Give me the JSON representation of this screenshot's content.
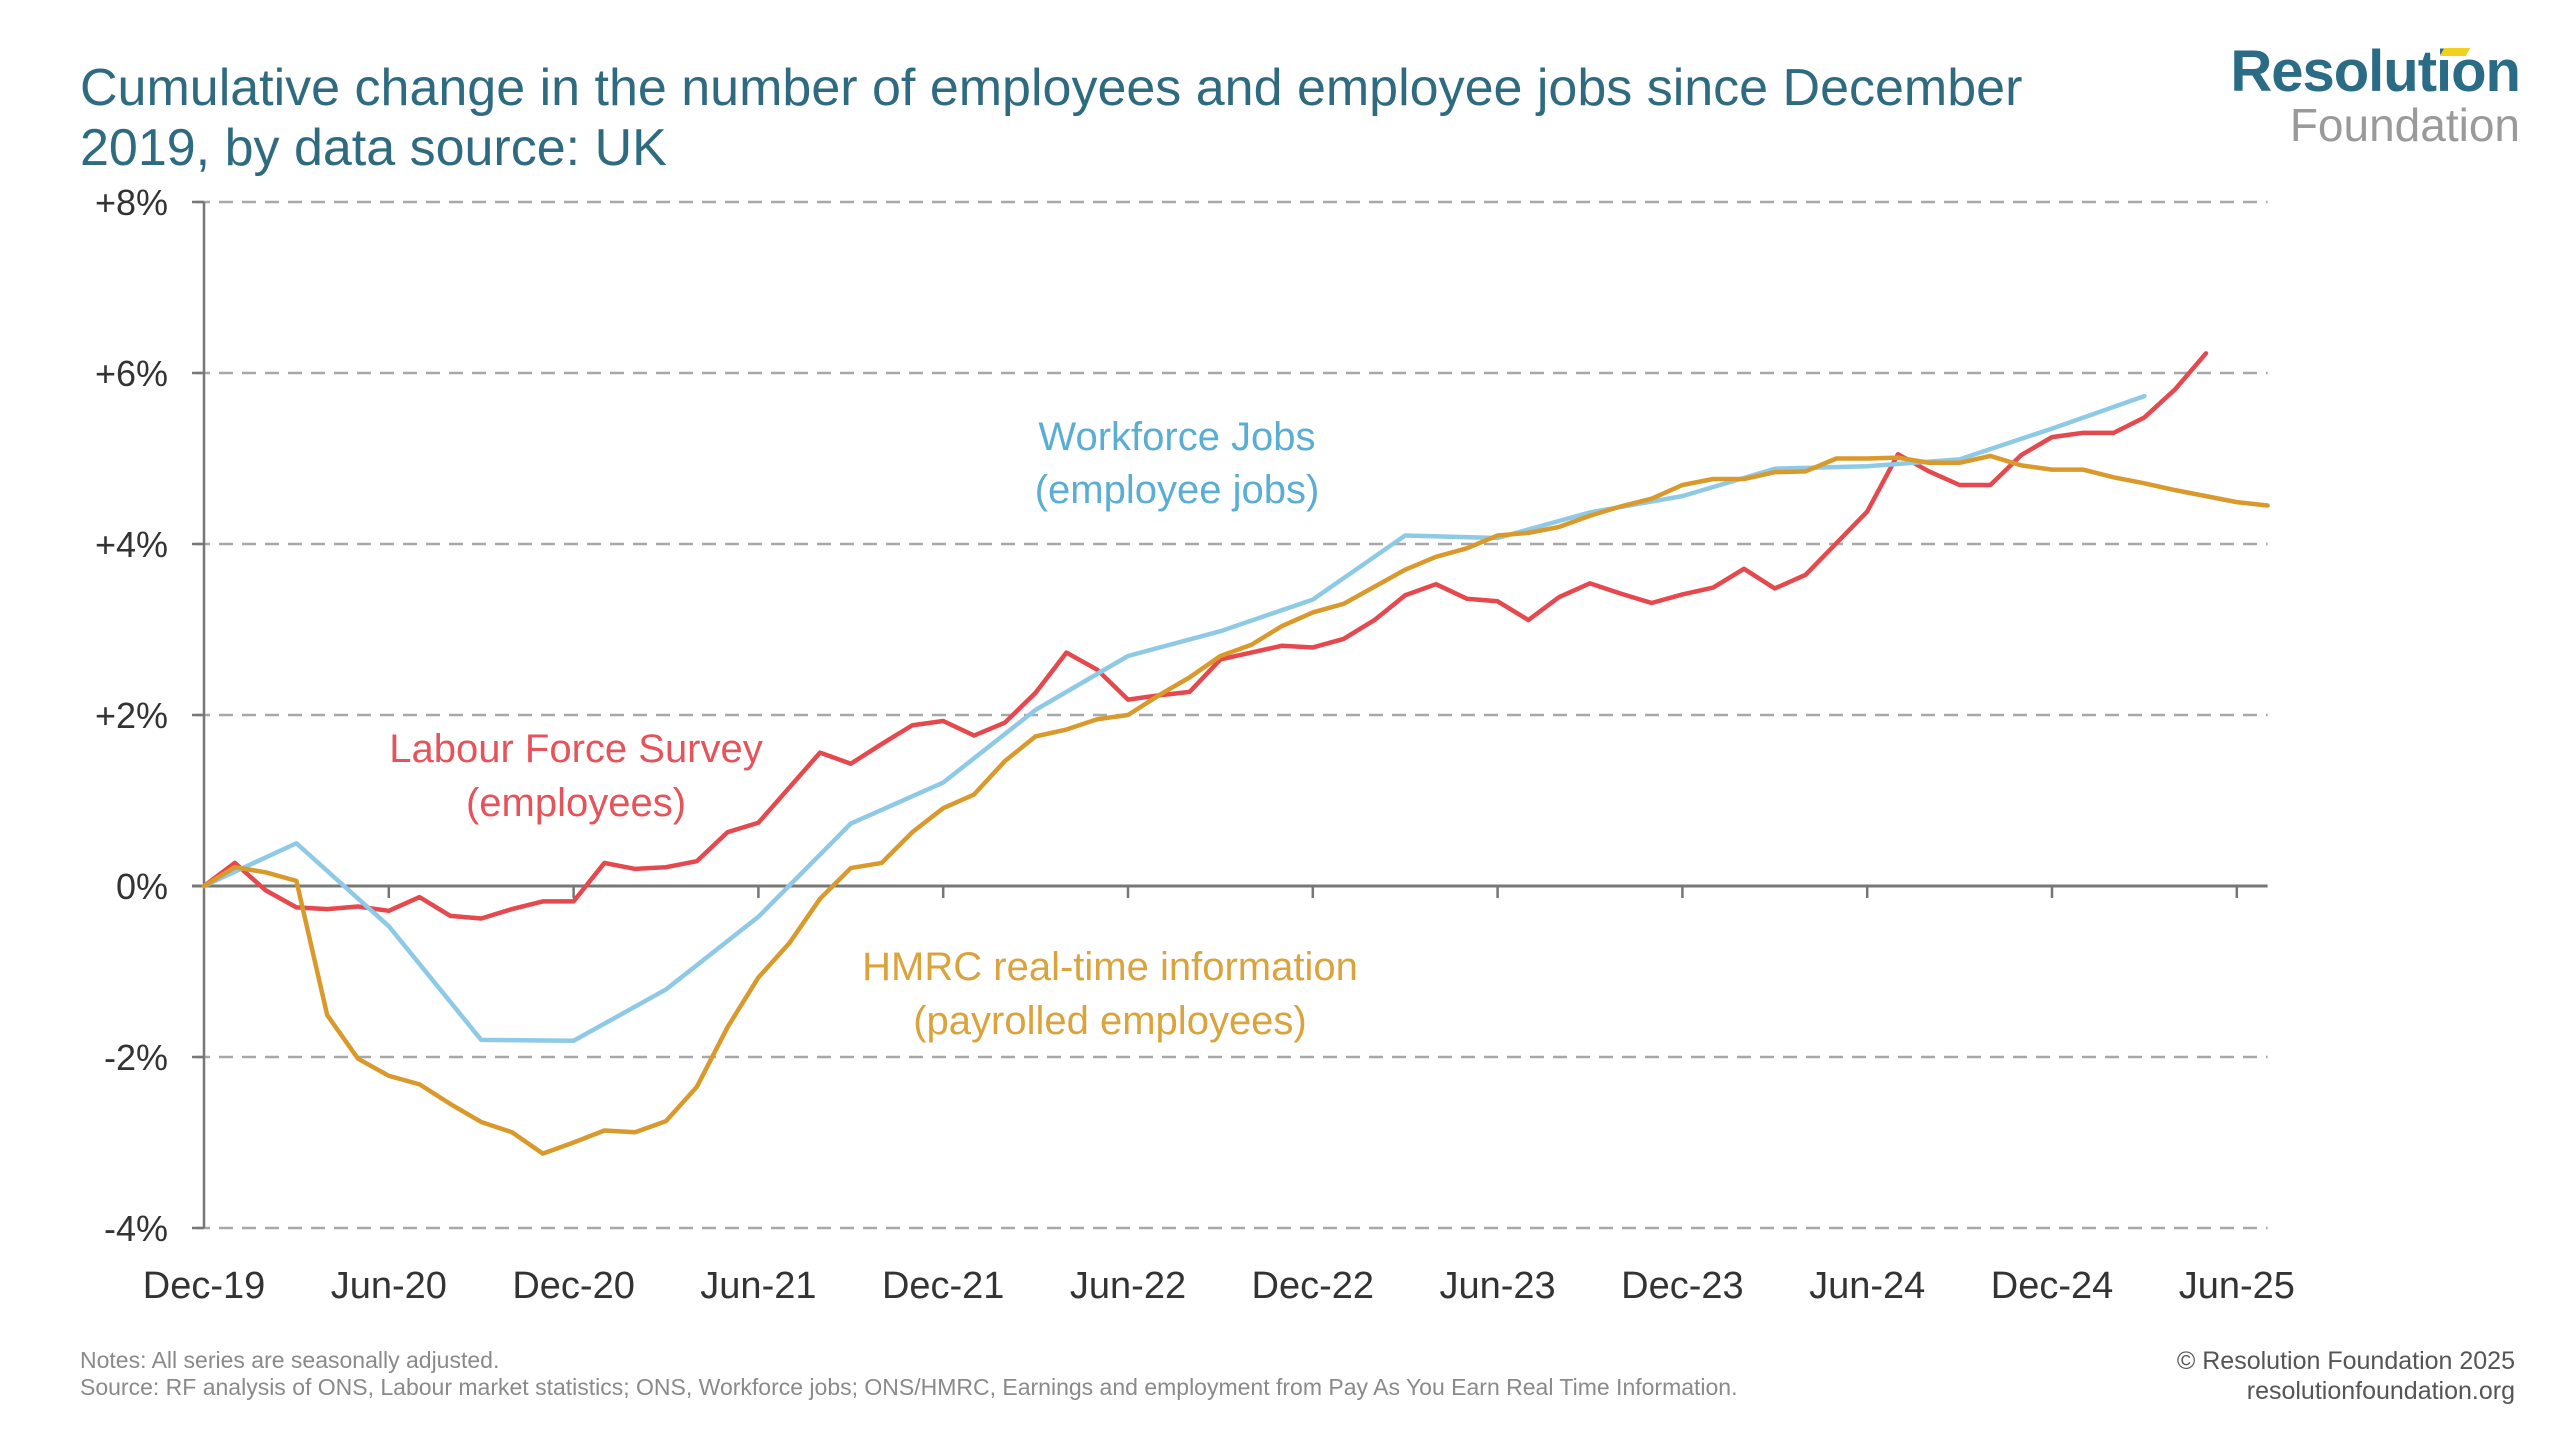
{
  "header": {
    "title": "Cumulative change in the number of employees and employee jobs since December 2019, by data source: UK"
  },
  "logo": {
    "line1": "Resolution",
    "line2": "Foundation",
    "accent_color": "#f0d21e"
  },
  "footer": {
    "notes": "Notes: All series are seasonally adjusted.",
    "source": "Source: RF analysis of ONS, Labour market statistics; ONS, Workforce jobs; ONS/HMRC, Earnings and employment from Pay As You Earn Real Time Information.",
    "copyright": "© Resolution Foundation 2025",
    "website": "resolutionfoundation.org"
  },
  "chart_data": {
    "type": "line",
    "title": "Cumulative change in the number of employees and employee jobs since December 2019, by data source: UK",
    "xlabel": "",
    "ylabel": "",
    "ylim": [
      -4,
      8
    ],
    "yticks": [
      -4,
      -2,
      0,
      2,
      4,
      6,
      8
    ],
    "ytick_labels": [
      "-4%",
      "-2%",
      "0%",
      "+2%",
      "+4%",
      "+6%",
      "+8%"
    ],
    "x_start": "Dec-19",
    "x_end": "Jul-25",
    "x_months_range": [
      0,
      67
    ],
    "xtick_months": [
      0,
      6,
      12,
      18,
      24,
      30,
      36,
      42,
      48,
      54,
      60,
      66
    ],
    "xtick_labels": [
      "Dec-19",
      "Jun-20",
      "Dec-20",
      "Jun-21",
      "Dec-21",
      "Jun-22",
      "Dec-22",
      "Jun-23",
      "Dec-23",
      "Jun-24",
      "Dec-24",
      "Jun-25"
    ],
    "grid": "horizontal dashed",
    "legend": "inline labels",
    "series": [
      {
        "name": "Labour Force Survey",
        "label_lines": [
          "Labour Force Survey",
          "(employees)"
        ],
        "color": "#e5484d",
        "frequency": "monthly",
        "start_month": 0,
        "values": [
          0,
          0.27,
          -0.05,
          -0.25,
          -0.27,
          -0.24,
          -0.29,
          -0.13,
          -0.35,
          -0.38,
          -0.27,
          -0.18,
          -0.18,
          0.27,
          0.2,
          0.22,
          0.29,
          0.63,
          0.74,
          1.15,
          1.56,
          1.43,
          1.66,
          1.88,
          1.93,
          1.76,
          1.91,
          2.26,
          2.73,
          2.53,
          2.18,
          2.23,
          2.27,
          2.65,
          2.73,
          2.81,
          2.79,
          2.89,
          3.11,
          3.4,
          3.53,
          3.36,
          3.33,
          3.11,
          3.38,
          3.54,
          3.42,
          3.31,
          3.41,
          3.49,
          3.71,
          3.48,
          3.64,
          4.01,
          4.38,
          5.05,
          4.85,
          4.69,
          4.69,
          5.04,
          5.25,
          5.3,
          5.3,
          5.48,
          5.81,
          6.23
        ]
      },
      {
        "name": "Workforce Jobs",
        "label_lines": [
          "Workforce Jobs",
          "(employee jobs)"
        ],
        "color": "#8ecae6",
        "frequency": "quarterly",
        "start_month": 0,
        "step_months": 3,
        "values": [
          0,
          0.5,
          -0.47,
          -1.8,
          -1.81,
          -1.21,
          -0.36,
          0.73,
          1.21,
          2.06,
          2.69,
          2.98,
          3.35,
          4.1,
          4.07,
          4.37,
          4.56,
          4.88,
          4.91,
          4.99,
          5.35,
          5.73
        ]
      },
      {
        "name": "HMRC real-time information",
        "label_lines": [
          "HMRC real-time information",
          "(payrolled employees)"
        ],
        "color": "#d99a2b",
        "frequency": "monthly",
        "start_month": 0,
        "values": [
          0,
          0.22,
          0.16,
          0.06,
          -1.51,
          -2.02,
          -2.22,
          -2.32,
          -2.55,
          -2.76,
          -2.88,
          -3.13,
          -3.0,
          -2.86,
          -2.88,
          -2.75,
          -2.35,
          -1.65,
          -1.07,
          -0.67,
          -0.15,
          0.21,
          0.27,
          0.63,
          0.91,
          1.07,
          1.46,
          1.75,
          1.83,
          1.95,
          2.0,
          2.23,
          2.44,
          2.69,
          2.82,
          3.04,
          3.2,
          3.3,
          3.5,
          3.7,
          3.85,
          3.95,
          4.1,
          4.13,
          4.2,
          4.33,
          4.44,
          4.53,
          4.69,
          4.76,
          4.76,
          4.84,
          4.85,
          5.0,
          5.0,
          5.01,
          4.95,
          4.95,
          5.03,
          4.92,
          4.87,
          4.87,
          4.78,
          4.71,
          4.63,
          4.56,
          4.49,
          4.45
        ]
      }
    ],
    "label_colors": {
      "Labour Force Survey": "#e5545a",
      "Workforce Jobs": "#5aaed3",
      "HMRC real-time information": "#dba33c"
    }
  }
}
